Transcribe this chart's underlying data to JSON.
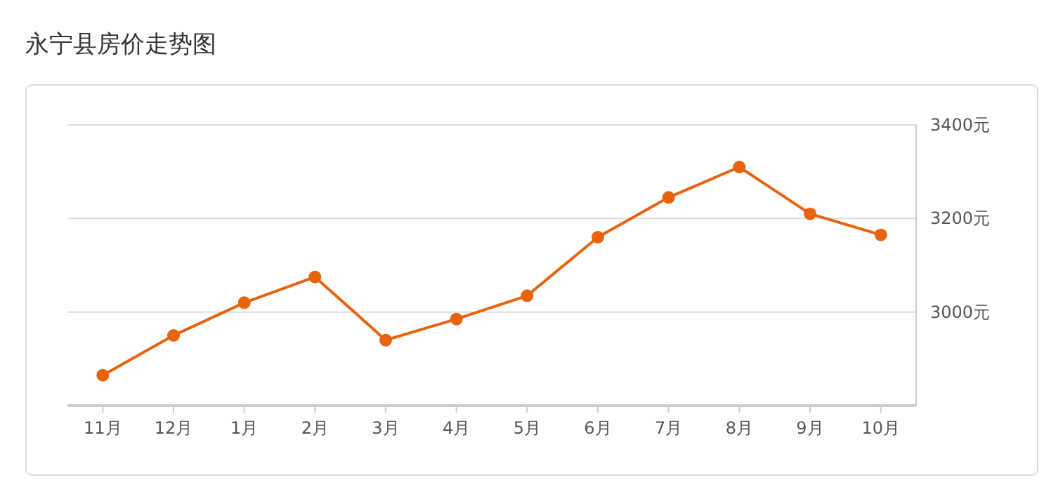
{
  "chart_data": {
    "type": "line",
    "title": "永宁县房价走势图",
    "categories": [
      "11月",
      "12月",
      "1月",
      "2月",
      "3月",
      "4月",
      "5月",
      "6月",
      "7月",
      "8月",
      "9月",
      "10月"
    ],
    "series": [
      {
        "color": "#e8630c",
        "values": [
          2865,
          2950,
          3020,
          3075,
          2940,
          2985,
          3035,
          3160,
          3245,
          3310,
          3210,
          3165
        ]
      }
    ],
    "ylim": [
      2800,
      3400
    ],
    "yticks": [
      {
        "value": 3000,
        "label": "3000元"
      },
      {
        "value": 3200,
        "label": "3200元"
      },
      {
        "value": 3400,
        "label": "3400元"
      }
    ],
    "grid": "y",
    "marker": "circle",
    "line_style": "solid"
  }
}
